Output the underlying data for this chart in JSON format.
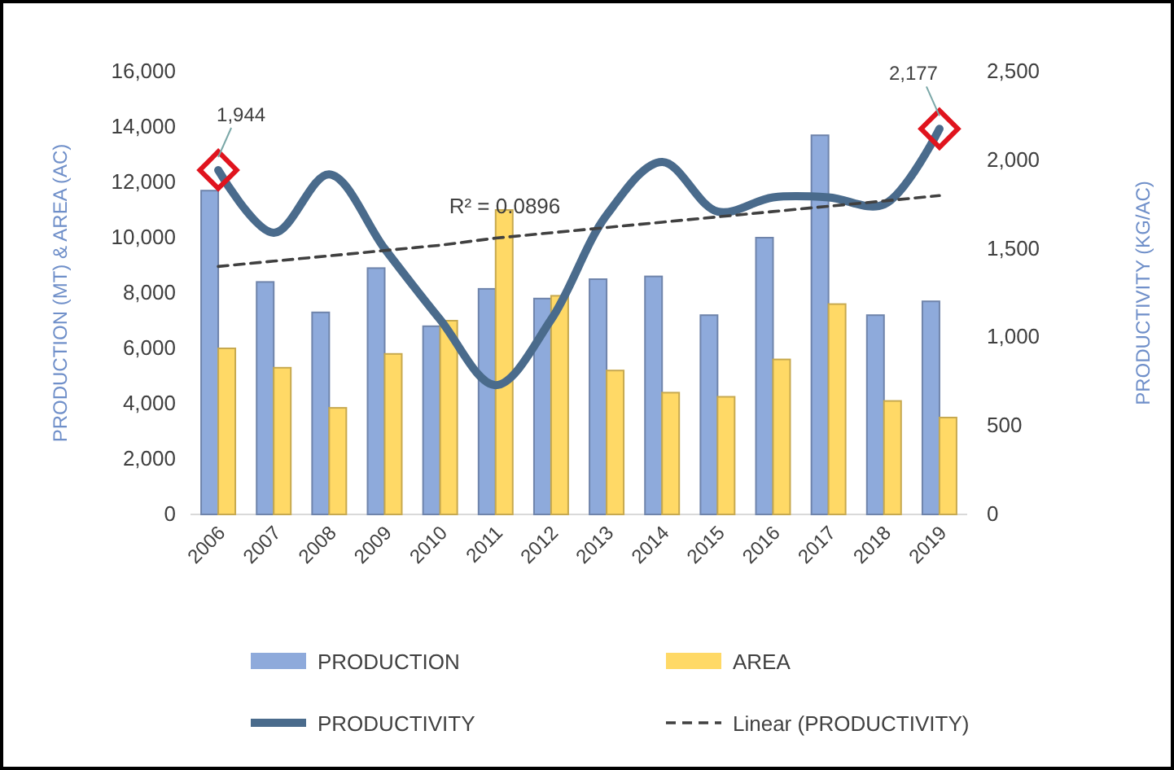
{
  "chart_data": {
    "type": "bar",
    "ylabel": "PRODUCTION (MT) & AREA (AC)",
    "y2label": "PRODUCTIVITY (KG/AC)",
    "categories": [
      "2006",
      "2007",
      "2008",
      "2009",
      "2010",
      "2011",
      "2012",
      "2013",
      "2014",
      "2015",
      "2016",
      "2017",
      "2018",
      "2019"
    ],
    "series": [
      {
        "name": "PRODUCTION",
        "color": "#8eaadb",
        "values": [
          11700,
          8400,
          7300,
          8900,
          6800,
          8150,
          7800,
          8500,
          8600,
          7200,
          10000,
          13700,
          7200,
          7700
        ]
      },
      {
        "name": "AREA",
        "color": "#ffd966",
        "values": [
          6000,
          5300,
          3850,
          5800,
          7000,
          11000,
          7900,
          5200,
          4400,
          4250,
          5600,
          7600,
          4100,
          3500
        ]
      },
      {
        "name": "PRODUCTIVITY",
        "type": "line",
        "axis": "y2",
        "color": "#4a6b8c",
        "values": [
          1944,
          1590,
          1920,
          1500,
          1100,
          730,
          1100,
          1690,
          1990,
          1710,
          1790,
          1790,
          1750,
          2177
        ],
        "value_labels": [
          "1,944",
          null,
          null,
          null,
          null,
          null,
          null,
          null,
          null,
          null,
          null,
          null,
          null,
          "2,177"
        ]
      },
      {
        "name": "Linear (PRODUCTIVITY)",
        "type": "line",
        "axis": "y2",
        "color": "#404040",
        "line_style": "dashed",
        "values": [
          1400,
          1430,
          1460,
          1490,
          1520,
          1560,
          1590,
          1620,
          1650,
          1680,
          1710,
          1740,
          1770,
          1800
        ]
      }
    ],
    "ylim": [
      0,
      16000
    ],
    "yticks": [
      {
        "value": 0,
        "label": "0"
      },
      {
        "value": 2000,
        "label": "2,000"
      },
      {
        "value": 4000,
        "label": "4,000"
      },
      {
        "value": 6000,
        "label": "6,000"
      },
      {
        "value": 8000,
        "label": "8,000"
      },
      {
        "value": 10000,
        "label": "10,000"
      },
      {
        "value": 12000,
        "label": "12,000"
      },
      {
        "value": 14000,
        "label": "14,000"
      },
      {
        "value": 16000,
        "label": "16,000"
      }
    ],
    "y2lim": [
      0,
      2500
    ],
    "y2ticks": [
      {
        "value": 0,
        "label": "0"
      },
      {
        "value": 500,
        "label": "500"
      },
      {
        "value": 1000,
        "label": "1,000"
      },
      {
        "value": 1500,
        "label": "1,500"
      },
      {
        "value": 2000,
        "label": "2,000"
      },
      {
        "value": 2500,
        "label": "2,500"
      }
    ],
    "annotations": [
      "R² = 0.0896"
    ],
    "legend": "bottom",
    "grid": false
  }
}
